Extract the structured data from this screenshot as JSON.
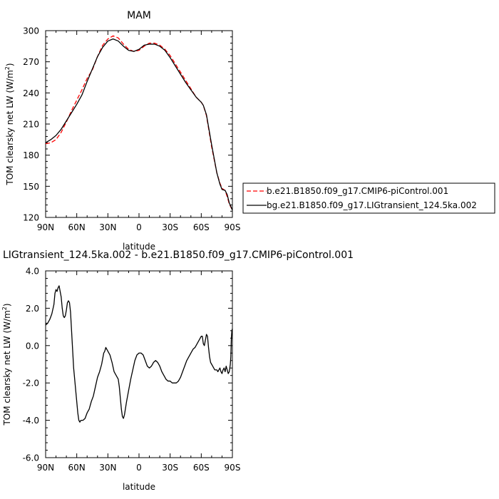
{
  "chart_data": [
    {
      "type": "line",
      "title": "MAM",
      "xlabel": "latitude",
      "ylabel_main": "TOM clearsky net LW (W/m",
      "ylabel_sup": "2",
      "ylabel_close": ")",
      "xlim": [
        90,
        -90
      ],
      "ylim": [
        120,
        300
      ],
      "xticks": [
        {
          "value": 90,
          "label": "90N"
        },
        {
          "value": 60,
          "label": "60N"
        },
        {
          "value": 30,
          "label": "30N"
        },
        {
          "value": 0,
          "label": "0"
        },
        {
          "value": -30,
          "label": "30S"
        },
        {
          "value": -60,
          "label": "60S"
        },
        {
          "value": -90,
          "label": "90S"
        }
      ],
      "yticks": [
        {
          "value": 120,
          "label": "120"
        },
        {
          "value": 150,
          "label": "150"
        },
        {
          "value": 180,
          "label": "180"
        },
        {
          "value": 210,
          "label": "210"
        },
        {
          "value": 240,
          "label": "240"
        },
        {
          "value": 270,
          "label": "270"
        },
        {
          "value": 300,
          "label": "300"
        }
      ],
      "legend": "right, outside plot",
      "series": [
        {
          "name": "b.e21.B1850.f09_g17.CMIP6-piControl.001",
          "color": "#ff0000",
          "dash": true,
          "x": [
            90,
            85,
            80,
            75,
            70,
            65,
            60,
            55,
            50,
            45,
            40,
            35,
            30,
            25,
            20,
            15,
            10,
            5,
            0,
            -5,
            -10,
            -15,
            -20,
            -25,
            -30,
            -35,
            -40,
            -45,
            -50,
            -55,
            -60,
            -62,
            -65,
            -70,
            -75,
            -78,
            -80,
            -83,
            -85,
            -87,
            -90
          ],
          "y": [
            191,
            192,
            195,
            202,
            212,
            223,
            233,
            243,
            254,
            262,
            275,
            286,
            292,
            295,
            293,
            287,
            282,
            280,
            281,
            285,
            288,
            288,
            286,
            282,
            276,
            268,
            260,
            252,
            244,
            236,
            231,
            228,
            218,
            188,
            163,
            153,
            148,
            146,
            140,
            133,
            127
          ]
        },
        {
          "name": "bg.e21.B1850.f09_g17.LIGtransient_124.5ka.002",
          "color": "#000000",
          "dash": false,
          "x": [
            90,
            85,
            80,
            75,
            70,
            65,
            60,
            55,
            50,
            45,
            40,
            35,
            30,
            25,
            20,
            15,
            10,
            5,
            0,
            -5,
            -10,
            -15,
            -20,
            -25,
            -30,
            -35,
            -40,
            -45,
            -50,
            -55,
            -60,
            -62,
            -65,
            -70,
            -75,
            -78,
            -80,
            -83,
            -85,
            -87,
            -90
          ],
          "y": [
            192,
            195,
            199,
            205,
            213,
            221,
            229,
            238,
            251,
            263,
            275,
            284,
            290,
            292,
            290,
            285,
            281,
            280,
            282,
            286,
            287,
            287,
            285,
            281,
            274,
            266,
            258,
            250,
            243,
            236,
            231,
            228,
            219,
            190,
            163,
            152,
            147,
            146,
            142,
            134,
            127
          ]
        }
      ]
    },
    {
      "type": "line",
      "title": "LIGtransient_124.5ka.002 - b.e21.B1850.f09_g17.CMIP6-piControl.001",
      "xlabel": "latitude",
      "ylabel_main": "TOM clearsky net LW (W/m",
      "ylabel_sup": "2",
      "ylabel_close": ")",
      "xlim": [
        90,
        -90
      ],
      "ylim": [
        -6,
        4
      ],
      "xticks": [
        {
          "value": 90,
          "label": "90N"
        },
        {
          "value": 60,
          "label": "60N"
        },
        {
          "value": 30,
          "label": "30N"
        },
        {
          "value": 0,
          "label": "0"
        },
        {
          "value": -30,
          "label": "30S"
        },
        {
          "value": -60,
          "label": "60S"
        },
        {
          "value": -90,
          "label": "90S"
        }
      ],
      "yticks": [
        {
          "value": -6,
          "label": "-6.0"
        },
        {
          "value": -4,
          "label": "-4.0"
        },
        {
          "value": -2,
          "label": "-2.0"
        },
        {
          "value": 0,
          "label": "0.0"
        },
        {
          "value": 2,
          "label": "2.0"
        },
        {
          "value": 4,
          "label": "4.0"
        }
      ],
      "series": [
        {
          "color": "#000000",
          "x": [
            90,
            88,
            86,
            84,
            82,
            81,
            80,
            79,
            78,
            77,
            76,
            75,
            74,
            73,
            72,
            71,
            70,
            69,
            68,
            67,
            66,
            65,
            64,
            63,
            62,
            61,
            60,
            59,
            58,
            57,
            56,
            55,
            54,
            52,
            50,
            48,
            46,
            44,
            42,
            40,
            38,
            36,
            35,
            34,
            33,
            32,
            31,
            30,
            28,
            26,
            24,
            22,
            20,
            19,
            18,
            17,
            16,
            15,
            14,
            12,
            10,
            8,
            6,
            4,
            2,
            0,
            -2,
            -4,
            -6,
            -8,
            -10,
            -12,
            -14,
            -16,
            -18,
            -20,
            -22,
            -24,
            -26,
            -28,
            -30,
            -32,
            -34,
            -36,
            -38,
            -40,
            -42,
            -44,
            -46,
            -48,
            -50,
            -52,
            -54,
            -56,
            -58,
            -60,
            -61,
            -62,
            -63,
            -64,
            -65,
            -66,
            -67,
            -68,
            -69,
            -70,
            -71,
            -72,
            -73,
            -74,
            -75,
            -76,
            -77,
            -78,
            -79,
            -80,
            -81,
            -82,
            -83,
            -84,
            -85,
            -86,
            -87,
            -87.5,
            -88,
            -88.5,
            -89,
            -89.5,
            -90
          ],
          "y": [
            1.1,
            1.2,
            1.4,
            1.7,
            2.2,
            2.8,
            3.0,
            2.9,
            3.1,
            3.2,
            2.9,
            2.6,
            2.0,
            1.6,
            1.5,
            1.6,
            1.9,
            2.3,
            2.4,
            2.3,
            1.8,
            0.8,
            -0.2,
            -1.2,
            -1.8,
            -2.4,
            -3.0,
            -3.6,
            -4.0,
            -4.1,
            -4.0,
            -4.0,
            -4.0,
            -3.9,
            -3.6,
            -3.4,
            -3.0,
            -2.7,
            -2.2,
            -1.7,
            -1.4,
            -1.0,
            -0.7,
            -0.4,
            -0.3,
            -0.1,
            -0.2,
            -0.3,
            -0.5,
            -0.9,
            -1.4,
            -1.6,
            -1.8,
            -2.2,
            -2.8,
            -3.4,
            -3.8,
            -3.9,
            -3.7,
            -3.0,
            -2.4,
            -1.8,
            -1.3,
            -0.8,
            -0.5,
            -0.4,
            -0.4,
            -0.5,
            -0.8,
            -1.1,
            -1.2,
            -1.1,
            -0.9,
            -0.8,
            -0.9,
            -1.1,
            -1.4,
            -1.6,
            -1.8,
            -1.9,
            -1.9,
            -2.0,
            -2.0,
            -2.0,
            -1.9,
            -1.7,
            -1.4,
            -1.1,
            -0.8,
            -0.6,
            -0.4,
            -0.2,
            -0.1,
            0.1,
            0.3,
            0.5,
            0.5,
            0.1,
            0.0,
            0.3,
            0.6,
            0.5,
            -0.1,
            -0.6,
            -0.9,
            -1.0,
            -1.1,
            -1.2,
            -1.3,
            -1.3,
            -1.3,
            -1.4,
            -1.3,
            -1.2,
            -1.4,
            -1.5,
            -1.3,
            -1.2,
            -1.4,
            -1.1,
            -1.3,
            -1.5,
            -1.4,
            -1.2,
            -1.0,
            -0.6,
            0.4,
            0.8,
            0.9
          ]
        }
      ]
    }
  ]
}
